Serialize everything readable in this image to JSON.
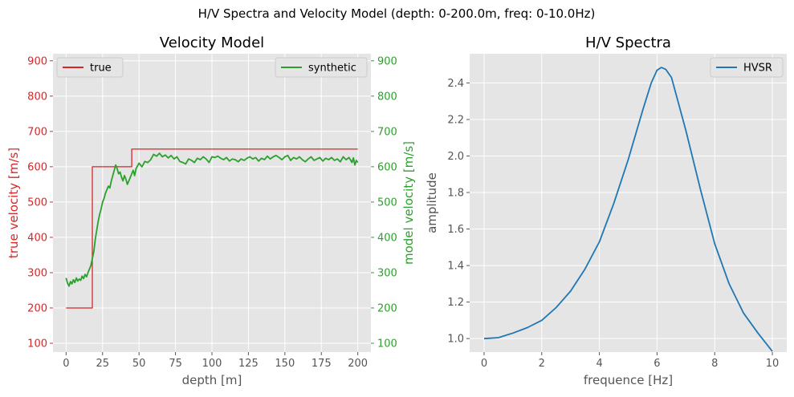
{
  "suptitle": "H/V Spectra and Velocity Model (depth: 0-200.0m, freq: 0-10.0Hz)",
  "colors": {
    "true_color": "#d62728",
    "synthetic_color": "#2ca02c",
    "hvsr_color": "#1f77b4",
    "axes_bg": "#e5e5e5",
    "grid": "#ffffff",
    "tick_text": "#555555"
  },
  "chart_data": [
    {
      "type": "line",
      "title": "Velocity Model",
      "xlabel": "depth [m]",
      "ylabel": "true velocity [m/s]",
      "ylabel_right": "model velocity [m/s]",
      "xlim": [
        -9,
        209
      ],
      "ylim": [
        75,
        920
      ],
      "xticks": [
        0,
        25,
        50,
        75,
        100,
        125,
        150,
        175,
        200
      ],
      "yticks": [
        100,
        200,
        300,
        400,
        500,
        600,
        700,
        800,
        900
      ],
      "legend_left": "top-left",
      "legend_right": "top-right",
      "grid": true,
      "series": [
        {
          "name": "true",
          "axis": "left",
          "step": true,
          "x": [
            0,
            18,
            18,
            45,
            45,
            200
          ],
          "y": [
            200,
            200,
            600,
            600,
            650,
            650
          ]
        },
        {
          "name": "synthetic",
          "axis": "right",
          "x": [
            0,
            1,
            2,
            3,
            4,
            5,
            6,
            7,
            8,
            9,
            10,
            11,
            12,
            13,
            14,
            15,
            16,
            17,
            18,
            19,
            20,
            21,
            22,
            23,
            24,
            25,
            26,
            27,
            28,
            29,
            30,
            31,
            32,
            33,
            34,
            35,
            36,
            37,
            38,
            39,
            40,
            41,
            42,
            43,
            44,
            45,
            46,
            47,
            48,
            50,
            52,
            54,
            56,
            58,
            60,
            62,
            64,
            66,
            68,
            70,
            72,
            74,
            76,
            78,
            80,
            82,
            84,
            86,
            88,
            90,
            92,
            94,
            96,
            98,
            100,
            102,
            104,
            106,
            108,
            110,
            112,
            114,
            116,
            118,
            120,
            122,
            124,
            126,
            128,
            130,
            132,
            134,
            136,
            138,
            140,
            142,
            144,
            146,
            148,
            150,
            152,
            154,
            156,
            158,
            160,
            162,
            164,
            166,
            168,
            170,
            172,
            174,
            176,
            178,
            180,
            182,
            184,
            186,
            188,
            190,
            192,
            194,
            196,
            197,
            198,
            199,
            200
          ],
          "y": [
            285,
            270,
            262,
            275,
            268,
            280,
            272,
            285,
            276,
            282,
            278,
            290,
            283,
            295,
            288,
            300,
            310,
            320,
            340,
            360,
            395,
            420,
            445,
            465,
            480,
            500,
            510,
            525,
            535,
            545,
            540,
            560,
            575,
            590,
            605,
            595,
            580,
            585,
            570,
            560,
            575,
            565,
            550,
            560,
            570,
            580,
            590,
            575,
            595,
            610,
            600,
            615,
            612,
            620,
            635,
            630,
            638,
            628,
            633,
            625,
            632,
            622,
            628,
            615,
            612,
            608,
            622,
            618,
            612,
            624,
            620,
            628,
            622,
            612,
            628,
            626,
            630,
            624,
            620,
            626,
            616,
            622,
            620,
            614,
            622,
            618,
            624,
            628,
            622,
            626,
            616,
            624,
            620,
            630,
            622,
            628,
            632,
            626,
            620,
            628,
            632,
            618,
            626,
            622,
            628,
            620,
            614,
            622,
            628,
            618,
            622,
            626,
            616,
            624,
            620,
            626,
            618,
            622,
            614,
            628,
            620,
            626,
            612,
            625,
            605,
            618,
            612
          ]
        }
      ]
    },
    {
      "type": "line",
      "title": "H/V Spectra",
      "xlabel": "frequence [Hz]",
      "ylabel": "amplitude",
      "xlim": [
        -0.5,
        10.5
      ],
      "ylim": [
        0.926,
        2.56
      ],
      "xticks": [
        0,
        2,
        4,
        6,
        8,
        10
      ],
      "yticks": [
        1.0,
        1.2,
        1.4,
        1.6,
        1.8,
        2.0,
        2.2,
        2.4
      ],
      "legend": "top-right",
      "grid": true,
      "series": [
        {
          "name": "HVSR",
          "x": [
            0,
            0.5,
            1,
            1.5,
            2,
            2.5,
            3,
            3.5,
            4,
            4.5,
            5,
            5.5,
            5.8,
            6.0,
            6.15,
            6.3,
            6.5,
            7,
            7.5,
            8,
            8.5,
            9,
            9.5,
            10
          ],
          "y": [
            1.0,
            1.005,
            1.03,
            1.06,
            1.1,
            1.17,
            1.26,
            1.38,
            1.53,
            1.74,
            1.98,
            2.25,
            2.4,
            2.47,
            2.485,
            2.475,
            2.43,
            2.14,
            1.82,
            1.52,
            1.3,
            1.14,
            1.03,
            0.93
          ]
        }
      ]
    }
  ]
}
